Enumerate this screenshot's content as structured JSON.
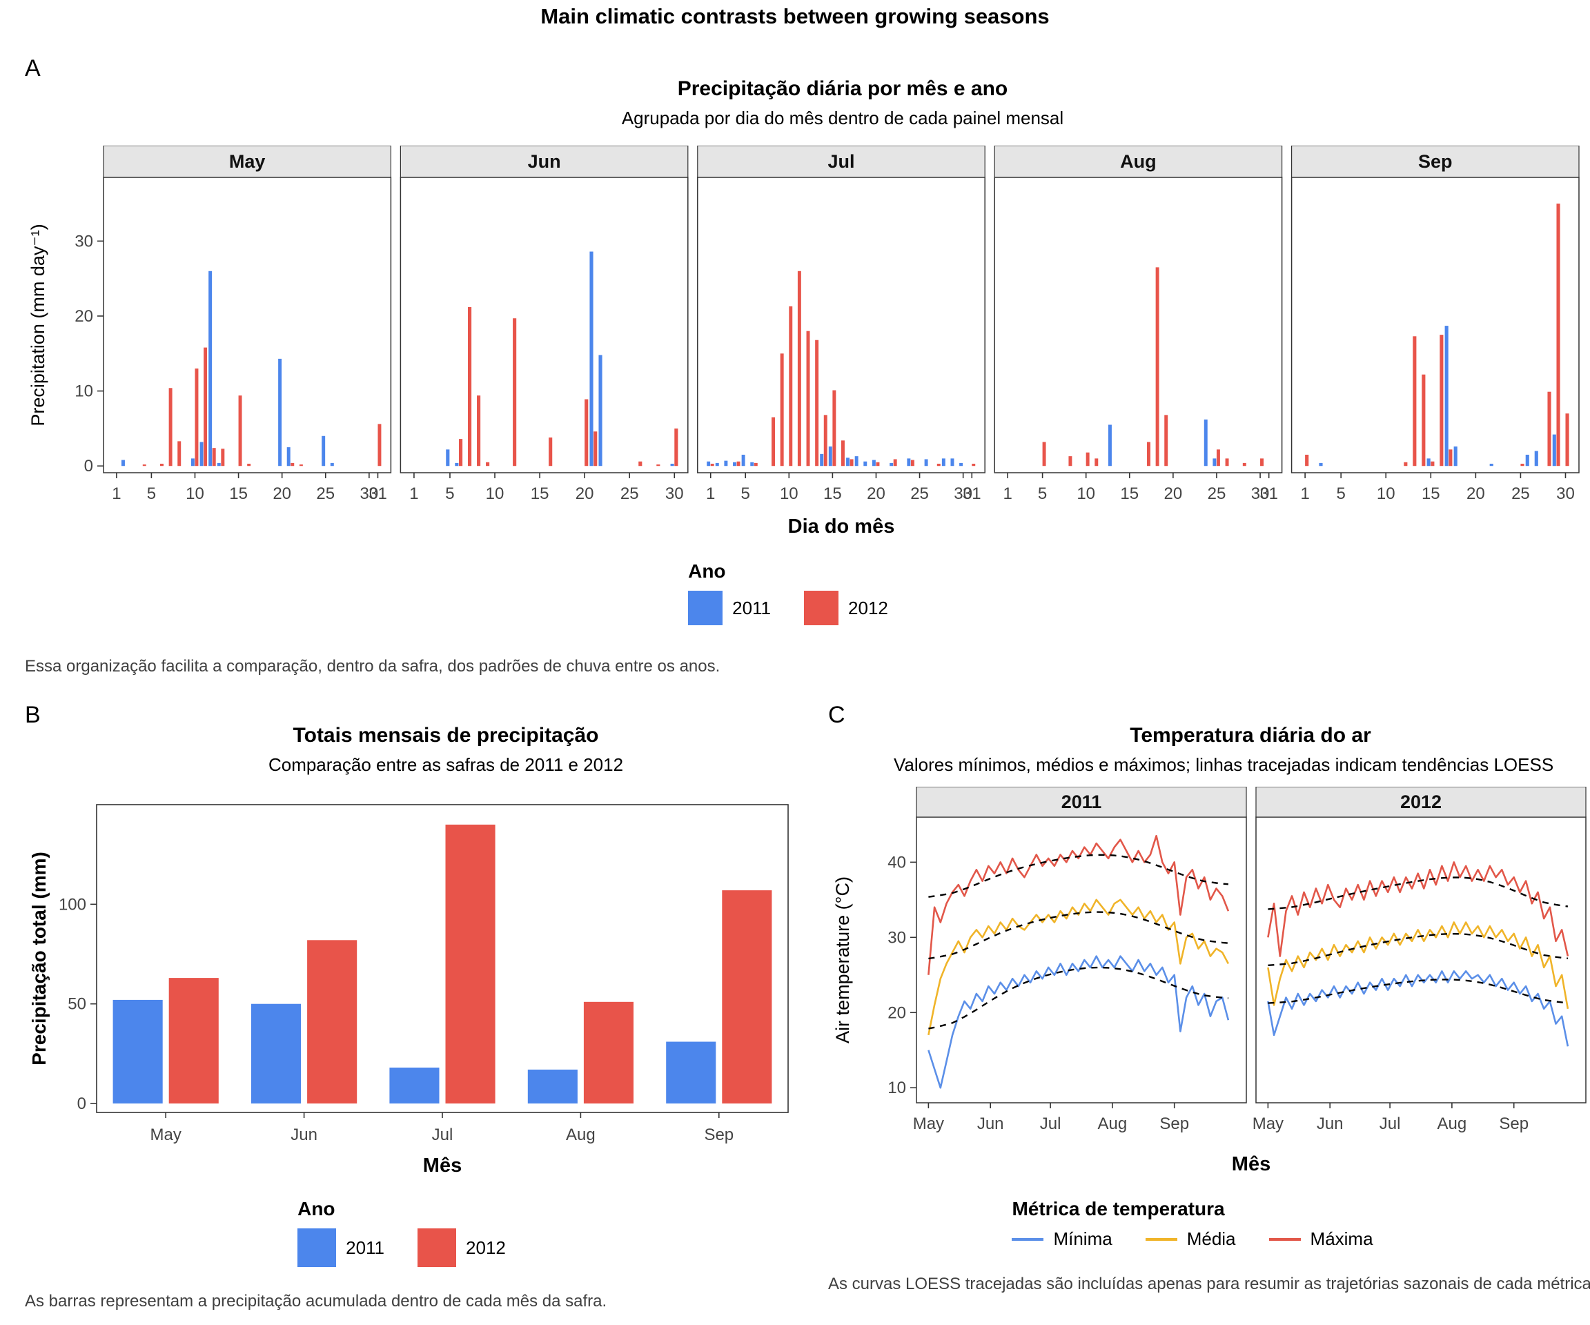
{
  "page": {
    "title": "Main climatic contrasts between growing seasons"
  },
  "colors": {
    "year_2011": "#4C86EC",
    "year_2012": "#E8544A",
    "strip_bg": "#E5E5E5",
    "panel_border": "#333333",
    "loess": "#000000"
  },
  "chart_data": [
    {
      "id": "daily_precipitation_by_month",
      "type": "bar",
      "section_label": "A",
      "title": "Precipitação diária por mês e ano",
      "subtitle": "Agrupada por dia do mês dentro de cada painel mensal",
      "xlabel": "Dia do mês",
      "ylabel": "Precipitation (mm day⁻¹)",
      "ylim": [
        0,
        37
      ],
      "yticks": [
        0,
        10,
        20,
        30
      ],
      "xticks": [
        1,
        5,
        10,
        15,
        20,
        25,
        30
      ],
      "grid": "off",
      "legend_title": "Ano",
      "legend_position": "bottom",
      "facets": [
        {
          "label": "May",
          "days": 31
        },
        {
          "label": "Jun",
          "days": 30
        },
        {
          "label": "Jul",
          "days": 31
        },
        {
          "label": "Aug",
          "days": 31
        },
        {
          "label": "Sep",
          "days": 30
        }
      ],
      "series": [
        {
          "name": "2011",
          "color": "#4C86EC",
          "data": {
            "May": [
              [
                2,
                0.8
              ],
              [
                10,
                1.0
              ],
              [
                11,
                3.2
              ],
              [
                12,
                26.0
              ],
              [
                13,
                0.4
              ],
              [
                20,
                14.3
              ],
              [
                21,
                2.5
              ],
              [
                25,
                4.0
              ],
              [
                26,
                0.4
              ]
            ],
            "Jun": [
              [
                5,
                2.2
              ],
              [
                6,
                0.4
              ],
              [
                21,
                28.6
              ],
              [
                22,
                14.8
              ],
              [
                30,
                0.3
              ]
            ],
            "Jul": [
              [
                1,
                0.6
              ],
              [
                2,
                0.4
              ],
              [
                3,
                0.7
              ],
              [
                4,
                0.5
              ],
              [
                5,
                1.5
              ],
              [
                6,
                0.5
              ],
              [
                14,
                1.6
              ],
              [
                15,
                2.6
              ],
              [
                17,
                1.1
              ],
              [
                18,
                1.3
              ],
              [
                19,
                0.6
              ],
              [
                20,
                0.8
              ],
              [
                22,
                0.4
              ],
              [
                24,
                1.0
              ],
              [
                26,
                0.9
              ],
              [
                28,
                1.0
              ],
              [
                29,
                1.0
              ],
              [
                30,
                0.4
              ]
            ],
            "Aug": [
              [
                13,
                5.5
              ],
              [
                24,
                6.2
              ],
              [
                25,
                1.0
              ]
            ],
            "Sep": [
              [
                3,
                0.4
              ],
              [
                15,
                1.0
              ],
              [
                17,
                18.7
              ],
              [
                18,
                2.6
              ],
              [
                22,
                0.3
              ],
              [
                26,
                1.5
              ],
              [
                27,
                2.0
              ],
              [
                29,
                4.2
              ]
            ]
          }
        },
        {
          "name": "2012",
          "color": "#E8544A",
          "data": {
            "May": [
              [
                4,
                0.2
              ],
              [
                6,
                0.3
              ],
              [
                7,
                10.4
              ],
              [
                8,
                3.3
              ],
              [
                10,
                13.0
              ],
              [
                11,
                15.8
              ],
              [
                12,
                2.4
              ],
              [
                13,
                2.3
              ],
              [
                15,
                9.4
              ],
              [
                16,
                0.3
              ],
              [
                21,
                0.4
              ],
              [
                22,
                0.2
              ],
              [
                31,
                5.6
              ]
            ],
            "Jun": [
              [
                6,
                3.6
              ],
              [
                7,
                21.2
              ],
              [
                8,
                9.4
              ],
              [
                9,
                0.5
              ],
              [
                12,
                19.7
              ],
              [
                16,
                3.8
              ],
              [
                20,
                8.9
              ],
              [
                21,
                4.6
              ],
              [
                26,
                0.6
              ],
              [
                28,
                0.2
              ],
              [
                30,
                5.0
              ]
            ],
            "Jul": [
              [
                1,
                0.3
              ],
              [
                4,
                0.6
              ],
              [
                6,
                0.4
              ],
              [
                8,
                6.5
              ],
              [
                9,
                15.0
              ],
              [
                10,
                21.3
              ],
              [
                11,
                26.0
              ],
              [
                12,
                18.0
              ],
              [
                13,
                16.8
              ],
              [
                14,
                6.8
              ],
              [
                15,
                10.1
              ],
              [
                16,
                3.4
              ],
              [
                17,
                0.9
              ],
              [
                20,
                0.5
              ],
              [
                22,
                0.9
              ],
              [
                24,
                0.8
              ],
              [
                27,
                0.3
              ],
              [
                31,
                0.3
              ]
            ],
            "Aug": [
              [
                5,
                3.2
              ],
              [
                8,
                1.3
              ],
              [
                10,
                1.8
              ],
              [
                11,
                1.0
              ],
              [
                17,
                3.2
              ],
              [
                18,
                26.5
              ],
              [
                19,
                6.8
              ],
              [
                25,
                2.2
              ],
              [
                26,
                1.0
              ],
              [
                28,
                0.4
              ],
              [
                30,
                1.0
              ]
            ],
            "Sep": [
              [
                1,
                1.5
              ],
              [
                12,
                0.5
              ],
              [
                13,
                17.3
              ],
              [
                14,
                12.2
              ],
              [
                15,
                0.6
              ],
              [
                16,
                17.5
              ],
              [
                17,
                2.2
              ],
              [
                25,
                0.3
              ],
              [
                28,
                9.9
              ],
              [
                29,
                35.0
              ],
              [
                30,
                7.0
              ]
            ]
          }
        }
      ],
      "caption": "Essa organização facilita a comparação, dentro da safra, dos padrões de chuva entre os anos."
    },
    {
      "id": "monthly_precipitation_totals",
      "type": "bar",
      "section_label": "B",
      "title": "Totais mensais de precipitação",
      "subtitle": "Comparação entre as safras de 2011 e 2012",
      "xlabel": "Mês",
      "ylabel": "Precipitação total (mm)",
      "ylim": [
        0,
        148
      ],
      "yticks": [
        0,
        50,
        100
      ],
      "grid": "off",
      "legend_title": "Ano",
      "legend_position": "bottom",
      "categories": [
        "May",
        "Jun",
        "Jul",
        "Aug",
        "Sep"
      ],
      "series": [
        {
          "name": "2011",
          "color": "#4C86EC",
          "values": [
            52,
            50,
            18,
            17,
            31
          ]
        },
        {
          "name": "2012",
          "color": "#E8544A",
          "values": [
            63,
            82,
            140,
            51,
            107
          ]
        }
      ],
      "caption": "As barras representam a precipitação acumulada dentro de cada mês da safra."
    },
    {
      "id": "daily_air_temperature",
      "type": "line",
      "section_label": "C",
      "title": "Temperatura diária do ar",
      "subtitle": "Valores mínimos, médios e máximos; linhas tracejadas indicam tendências LOESS",
      "xlabel": "Mês",
      "ylabel": "Air temperature (°C)",
      "ylim": [
        8,
        46
      ],
      "yticks": [
        10,
        20,
        30,
        40
      ],
      "grid": "off",
      "loess": "dashed black LOESS trend per metric",
      "legend_title": "Métrica de temperatura",
      "legend_position": "bottom",
      "facets": [
        "2011",
        "2012"
      ],
      "x_unit": "days since May 1",
      "x_step": 3,
      "xticks": [
        {
          "day": 0,
          "label": "May"
        },
        {
          "day": 31,
          "label": "Jun"
        },
        {
          "day": 61,
          "label": "Jul"
        },
        {
          "day": 92,
          "label": "Aug"
        },
        {
          "day": 123,
          "label": "Sep"
        }
      ],
      "metrics": [
        {
          "name": "Mínima",
          "color": "#5B8FE8"
        },
        {
          "name": "Média",
          "color": "#F0B429"
        },
        {
          "name": "Máxima",
          "color": "#E25749"
        }
      ],
      "series": [
        {
          "facet": "2011",
          "metric": "Mínima",
          "values": [
            15.0,
            12.5,
            10.0,
            13.5,
            17.0,
            19.5,
            21.5,
            20.5,
            22.5,
            21.5,
            23.5,
            22.5,
            24.0,
            23.0,
            24.5,
            23.5,
            25.0,
            24.0,
            25.5,
            24.5,
            26.0,
            25.0,
            26.5,
            25.0,
            26.5,
            25.5,
            27.0,
            26.0,
            27.5,
            26.0,
            27.0,
            26.0,
            27.5,
            26.5,
            25.5,
            27.0,
            25.5,
            26.5,
            25.0,
            26.0,
            24.0,
            25.0,
            17.5,
            22.0,
            23.5,
            21.0,
            22.5,
            19.5,
            21.5,
            22.0,
            19.0
          ]
        },
        {
          "facet": "2011",
          "metric": "Média",
          "values": [
            17.0,
            21.0,
            24.5,
            26.5,
            28.0,
            29.5,
            28.0,
            30.0,
            31.0,
            30.0,
            31.5,
            30.5,
            32.0,
            31.0,
            32.5,
            31.5,
            31.0,
            32.0,
            33.0,
            32.0,
            33.0,
            32.0,
            33.5,
            32.5,
            34.0,
            33.0,
            34.5,
            33.5,
            35.0,
            34.0,
            33.0,
            34.5,
            35.0,
            34.0,
            33.0,
            34.0,
            32.5,
            33.5,
            32.0,
            33.0,
            31.0,
            32.0,
            26.5,
            30.0,
            30.5,
            28.5,
            29.5,
            27.5,
            28.5,
            28.0,
            26.5
          ]
        },
        {
          "facet": "2011",
          "metric": "Máxima",
          "values": [
            25.0,
            34.0,
            32.0,
            34.5,
            36.0,
            37.0,
            35.5,
            37.5,
            39.0,
            37.5,
            39.5,
            38.5,
            40.0,
            38.5,
            40.5,
            39.0,
            38.0,
            39.5,
            41.0,
            39.5,
            40.5,
            39.5,
            41.0,
            40.0,
            41.5,
            40.5,
            42.0,
            41.0,
            42.5,
            41.5,
            40.5,
            42.0,
            43.0,
            41.5,
            40.0,
            41.5,
            40.0,
            41.0,
            43.5,
            40.0,
            38.5,
            40.0,
            33.0,
            38.0,
            39.0,
            36.5,
            38.0,
            35.0,
            36.5,
            35.5,
            33.5
          ]
        },
        {
          "facet": "2012",
          "metric": "Mínima",
          "values": [
            21.5,
            17.0,
            19.5,
            22.0,
            20.5,
            22.5,
            21.0,
            22.5,
            21.5,
            23.0,
            22.0,
            23.5,
            22.0,
            23.5,
            22.5,
            24.0,
            22.5,
            24.0,
            23.0,
            24.5,
            23.0,
            24.5,
            23.5,
            25.0,
            23.5,
            25.0,
            24.0,
            25.0,
            24.0,
            25.5,
            24.0,
            25.5,
            24.5,
            25.5,
            24.5,
            25.0,
            24.0,
            25.0,
            23.5,
            24.5,
            23.0,
            24.0,
            22.5,
            23.5,
            21.5,
            22.5,
            20.5,
            21.5,
            18.5,
            19.5,
            15.5
          ]
        },
        {
          "facet": "2012",
          "metric": "Média",
          "values": [
            26.0,
            21.0,
            24.5,
            27.0,
            25.5,
            27.5,
            26.0,
            28.0,
            27.0,
            28.5,
            27.0,
            29.0,
            27.5,
            29.0,
            28.0,
            29.5,
            28.0,
            30.0,
            28.5,
            30.0,
            29.0,
            30.5,
            29.0,
            30.5,
            29.5,
            31.0,
            29.5,
            31.0,
            30.0,
            31.5,
            30.0,
            32.0,
            30.5,
            32.0,
            30.5,
            31.5,
            30.0,
            31.5,
            30.0,
            31.0,
            29.5,
            30.5,
            28.5,
            30.0,
            27.5,
            29.0,
            26.0,
            27.5,
            23.5,
            25.0,
            20.5
          ]
        },
        {
          "facet": "2012",
          "metric": "Máxima",
          "values": [
            30.0,
            34.5,
            27.5,
            33.5,
            35.5,
            33.0,
            36.0,
            34.0,
            36.5,
            34.5,
            37.0,
            35.0,
            34.0,
            36.5,
            35.0,
            37.0,
            35.0,
            37.5,
            35.5,
            37.5,
            36.0,
            38.0,
            36.0,
            38.0,
            36.5,
            38.5,
            36.5,
            39.0,
            37.0,
            39.5,
            37.5,
            40.0,
            38.0,
            39.5,
            37.5,
            39.0,
            37.5,
            39.5,
            38.0,
            39.0,
            37.0,
            38.0,
            36.0,
            37.5,
            34.5,
            36.0,
            32.5,
            34.0,
            29.5,
            31.0,
            27.5
          ]
        }
      ],
      "caption": "As curvas LOESS tracejadas são incluídas apenas para resumir as trajetórias sazonais de cada métrica de t"
    }
  ]
}
